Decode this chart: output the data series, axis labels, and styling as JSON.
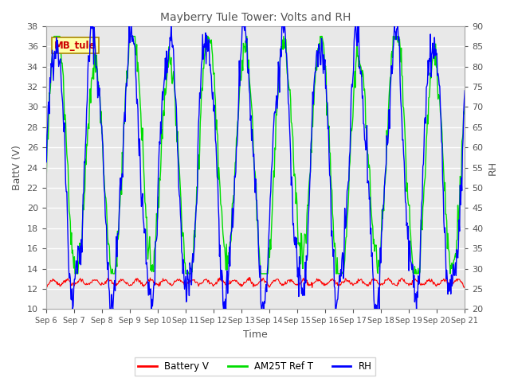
{
  "title": "Mayberry Tule Tower: Volts and RH",
  "xlabel": "Time",
  "ylabel_left": "BattV (V)",
  "ylabel_right": "RH",
  "ylim_left": [
    10,
    38
  ],
  "ylim_right": [
    20,
    90
  ],
  "yticks_left": [
    10,
    12,
    14,
    16,
    18,
    20,
    22,
    24,
    26,
    28,
    30,
    32,
    34,
    36,
    38
  ],
  "yticks_right": [
    20,
    25,
    30,
    35,
    40,
    45,
    50,
    55,
    60,
    65,
    70,
    75,
    80,
    85,
    90
  ],
  "xtick_labels": [
    "Sep 6",
    "Sep 7",
    "Sep 8",
    "Sep 9",
    "Sep 10",
    "Sep 11",
    "Sep 12",
    "Sep 13",
    "Sep 14",
    "Sep 15",
    "Sep 16",
    "Sep 17",
    "Sep 18",
    "Sep 19",
    "Sep 20",
    "Sep 21"
  ],
  "fig_bg_color": "#ffffff",
  "plot_bg_color": "#e8e8e8",
  "grid_color": "#d0d0d0",
  "battery_color": "#ff0000",
  "am25t_color": "#00dd00",
  "rh_color": "#0000ff",
  "legend_label_battery": "Battery V",
  "legend_label_am25t": "AM25T Ref T",
  "legend_label_rh": "RH",
  "station_label": "MB_tule",
  "station_label_bg": "#ffffaa",
  "station_label_border": "#aa8800",
  "station_label_color": "#cc0000",
  "title_color": "#555555",
  "axis_label_color": "#555555",
  "tick_color": "#555555"
}
